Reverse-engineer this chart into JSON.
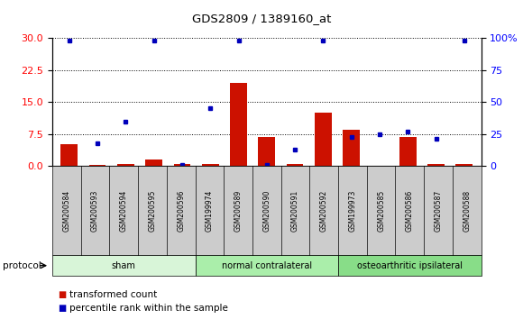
{
  "title": "GDS2809 / 1389160_at",
  "samples": [
    "GSM200584",
    "GSM200593",
    "GSM200594",
    "GSM200595",
    "GSM200596",
    "GSM199974",
    "GSM200589",
    "GSM200590",
    "GSM200591",
    "GSM200592",
    "GSM199973",
    "GSM200585",
    "GSM200586",
    "GSM200587",
    "GSM200588"
  ],
  "red_values": [
    5.2,
    0.15,
    0.4,
    1.5,
    0.4,
    0.4,
    19.5,
    6.8,
    0.4,
    12.5,
    8.5,
    0.1,
    6.8,
    0.4,
    0.4
  ],
  "blue_values": [
    98,
    18,
    35,
    98,
    1,
    45,
    98,
    1,
    13,
    98,
    23,
    25,
    27,
    21,
    98
  ],
  "groups": [
    {
      "label": "sham",
      "start": 0,
      "end": 5,
      "color": "#d8f5d8"
    },
    {
      "label": "normal contralateral",
      "start": 5,
      "end": 10,
      "color": "#aaeeaa"
    },
    {
      "label": "osteoarthritic ipsilateral",
      "start": 10,
      "end": 15,
      "color": "#88dd88"
    }
  ],
  "left_ylim": [
    0,
    30
  ],
  "right_ylim": [
    0,
    100
  ],
  "left_yticks": [
    0,
    7.5,
    15,
    22.5,
    30
  ],
  "right_yticks": [
    0,
    25,
    50,
    75,
    100
  ],
  "right_yticklabels": [
    "0",
    "25",
    "50",
    "75",
    "100%"
  ],
  "bar_color": "#cc1100",
  "dot_color": "#0000bb",
  "bar_width": 0.6,
  "protocol_label": "protocol",
  "legend_red": "transformed count",
  "legend_blue": "percentile rank within the sample",
  "tick_bg_color": "#cccccc"
}
